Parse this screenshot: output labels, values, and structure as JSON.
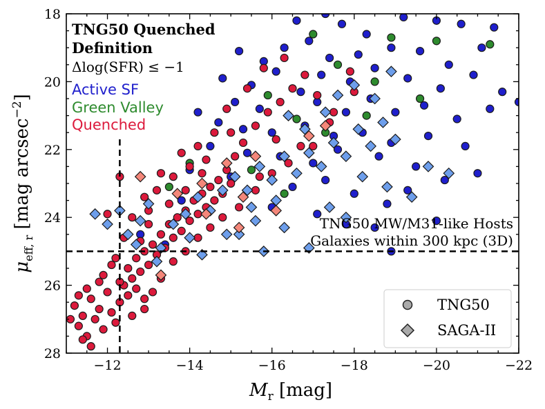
{
  "chart_data": {
    "type": "scatter",
    "xlabel_sym": "M",
    "xlabel_sub": "r",
    "xlabel_unit": " [mag]",
    "ylabel_sym": "μ",
    "ylabel_sub": "eff, r",
    "ylabel_unit": " [mag arcsec",
    "ylabel_exp": "−2",
    "ylabel_close": "]",
    "xlim": [
      -11,
      -22
    ],
    "ylim": [
      28,
      18
    ],
    "xticks": [
      -12,
      -14,
      -16,
      -18,
      -20,
      -22
    ],
    "xtick_labels": [
      "−12",
      "−14",
      "−16",
      "−18",
      "−20",
      "−22"
    ],
    "yticks": [
      18,
      20,
      22,
      24,
      26,
      28
    ],
    "ytick_labels": [
      "18",
      "20",
      "22",
      "24",
      "26",
      "28"
    ],
    "info_title_1": "TNG50 Quenched",
    "info_title_2": "Definition",
    "info_criterion": "Δlog(SFR) ≤ −1",
    "categories": [
      "Active SF",
      "Green Valley",
      "Quenched"
    ],
    "category_colors": {
      "active": "#1f1fcc",
      "green": "#2e8b2e",
      "quenched": "#dc1a3c",
      "saga_blue": "#6d9eeb",
      "saga_salmon": "#f4877a"
    },
    "annotation_line1": "TNG50 MW/M31-like Hosts",
    "annotation_line2": "Galaxies within 300 kpc (3D)",
    "reference_lines": {
      "x": -12.3,
      "y": 25.0
    },
    "legend": [
      "TNG50",
      "SAGA-II"
    ],
    "series": [
      {
        "name": "TNG50 Active SF",
        "marker": "circle",
        "color_key": "active",
        "points": [
          [
            -16.6,
            18.2
          ],
          [
            -17.3,
            18.0
          ],
          [
            -17.7,
            18.3
          ],
          [
            -18.3,
            18.6
          ],
          [
            -19.2,
            18.1
          ],
          [
            -20.0,
            18.2
          ],
          [
            -20.6,
            18.3
          ],
          [
            -21.4,
            18.4
          ],
          [
            -15.2,
            19.1
          ],
          [
            -15.8,
            19.4
          ],
          [
            -16.3,
            19.0
          ],
          [
            -16.9,
            18.8
          ],
          [
            -17.4,
            19.3
          ],
          [
            -18.1,
            19.2
          ],
          [
            -18.9,
            19.0
          ],
          [
            -19.6,
            19.1
          ],
          [
            -20.3,
            19.5
          ],
          [
            -21.1,
            19.0
          ],
          [
            -14.8,
            19.9
          ],
          [
            -15.5,
            20.1
          ],
          [
            -16.1,
            19.7
          ],
          [
            -16.7,
            20.3
          ],
          [
            -17.2,
            19.8
          ],
          [
            -17.9,
            20.0
          ],
          [
            -18.5,
            19.6
          ],
          [
            -19.3,
            19.9
          ],
          [
            -20.1,
            20.2
          ],
          [
            -20.9,
            19.8
          ],
          [
            -21.6,
            20.3
          ],
          [
            -15.1,
            20.6
          ],
          [
            -15.7,
            20.8
          ],
          [
            -16.4,
            21.0
          ],
          [
            -17.1,
            20.6
          ],
          [
            -17.8,
            20.9
          ],
          [
            -18.4,
            20.5
          ],
          [
            -19.0,
            20.9
          ],
          [
            -19.7,
            20.7
          ],
          [
            -20.5,
            21.1
          ],
          [
            -21.3,
            20.8
          ],
          [
            -14.2,
            20.9
          ],
          [
            -14.7,
            21.2
          ],
          [
            -15.3,
            21.4
          ],
          [
            -16.0,
            21.5
          ],
          [
            -16.8,
            21.3
          ],
          [
            -17.5,
            21.6
          ],
          [
            -18.2,
            21.5
          ],
          [
            -18.9,
            21.8
          ],
          [
            -19.8,
            21.6
          ],
          [
            -20.7,
            21.9
          ],
          [
            -22.0,
            20.6
          ],
          [
            -14.5,
            21.9
          ],
          [
            -15.4,
            22.1
          ],
          [
            -16.2,
            22.2
          ],
          [
            -17.0,
            22.4
          ],
          [
            -17.6,
            22.0
          ],
          [
            -18.6,
            22.2
          ],
          [
            -19.5,
            22.5
          ],
          [
            -20.2,
            22.9
          ],
          [
            -21.0,
            22.7
          ],
          [
            -14.0,
            22.6
          ],
          [
            -15.0,
            22.8
          ],
          [
            -16.5,
            23.1
          ],
          [
            -17.3,
            22.9
          ],
          [
            -18.0,
            23.3
          ],
          [
            -18.8,
            23.6
          ],
          [
            -19.3,
            23.2
          ],
          [
            -20.0,
            24.1
          ],
          [
            -16.0,
            23.7
          ],
          [
            -17.1,
            23.9
          ],
          [
            -17.8,
            24.2
          ],
          [
            -18.5,
            24.3
          ],
          [
            -18.9,
            25.0
          ],
          [
            -13.8,
            23.5
          ],
          [
            -12.8,
            24.5
          ],
          [
            -13.4,
            24.8
          ]
        ]
      },
      {
        "name": "TNG50 Green Valley",
        "marker": "circle",
        "color_key": "green",
        "points": [
          [
            -17.0,
            18.6
          ],
          [
            -18.9,
            18.7
          ],
          [
            -20.0,
            18.8
          ],
          [
            -21.3,
            18.9
          ],
          [
            -17.6,
            19.5
          ],
          [
            -18.5,
            20.0
          ],
          [
            -15.9,
            20.4
          ],
          [
            -19.6,
            20.5
          ],
          [
            -16.6,
            21.1
          ],
          [
            -17.3,
            21.5
          ],
          [
            -18.3,
            21.0
          ],
          [
            -14.0,
            22.4
          ],
          [
            -15.5,
            22.6
          ],
          [
            -16.3,
            23.3
          ],
          [
            -13.5,
            23.1
          ]
        ]
      },
      {
        "name": "TNG50 Quenched",
        "marker": "circle",
        "color_key": "quenched",
        "points": [
          [
            -11.2,
            26.6
          ],
          [
            -11.3,
            27.2
          ],
          [
            -11.4,
            26.9
          ],
          [
            -11.5,
            27.5
          ],
          [
            -11.6,
            26.4
          ],
          [
            -11.7,
            27.0
          ],
          [
            -11.8,
            26.7
          ],
          [
            -11.9,
            27.3
          ],
          [
            -11.4,
            27.6
          ],
          [
            -11.6,
            27.8
          ],
          [
            -12.0,
            26.2
          ],
          [
            -12.1,
            26.8
          ],
          [
            -12.2,
            27.1
          ],
          [
            -12.3,
            26.5
          ],
          [
            -12.4,
            26.0
          ],
          [
            -12.5,
            26.3
          ],
          [
            -12.6,
            25.8
          ],
          [
            -12.7,
            26.1
          ],
          [
            -12.8,
            25.6
          ],
          [
            -12.9,
            26.4
          ],
          [
            -11.9,
            25.7
          ],
          [
            -12.1,
            25.4
          ],
          [
            -12.3,
            25.9
          ],
          [
            -12.5,
            25.5
          ],
          [
            -12.7,
            25.2
          ],
          [
            -12.9,
            25.0
          ],
          [
            -13.0,
            25.4
          ],
          [
            -13.1,
            24.8
          ],
          [
            -13.2,
            25.1
          ],
          [
            -13.3,
            24.5
          ],
          [
            -13.4,
            24.9
          ],
          [
            -13.5,
            24.2
          ],
          [
            -13.6,
            24.6
          ],
          [
            -13.7,
            24.0
          ],
          [
            -13.8,
            24.4
          ],
          [
            -13.9,
            23.8
          ],
          [
            -14.0,
            24.1
          ],
          [
            -14.1,
            23.5
          ],
          [
            -14.2,
            23.9
          ],
          [
            -14.3,
            23.3
          ],
          [
            -14.4,
            23.7
          ],
          [
            -14.5,
            23.1
          ],
          [
            -14.6,
            23.5
          ],
          [
            -14.7,
            22.9
          ],
          [
            -14.8,
            23.3
          ],
          [
            -14.9,
            22.6
          ],
          [
            -15.0,
            23.0
          ],
          [
            -13.2,
            23.2
          ],
          [
            -13.5,
            23.6
          ],
          [
            -13.0,
            24.2
          ],
          [
            -12.8,
            24.7
          ],
          [
            -13.6,
            22.8
          ],
          [
            -14.0,
            22.5
          ],
          [
            -14.4,
            22.3
          ],
          [
            -15.1,
            22.2
          ],
          [
            -15.3,
            21.8
          ],
          [
            -15.6,
            21.3
          ],
          [
            -15.9,
            20.9
          ],
          [
            -16.2,
            20.6
          ],
          [
            -16.5,
            20.2
          ],
          [
            -16.8,
            19.8
          ],
          [
            -17.1,
            20.4
          ],
          [
            -17.5,
            20.9
          ],
          [
            -17.9,
            19.7
          ],
          [
            -15.4,
            20.2
          ],
          [
            -14.9,
            20.8
          ],
          [
            -15.8,
            19.6
          ],
          [
            -16.3,
            19.3
          ],
          [
            -14.6,
            21.5
          ],
          [
            -14.2,
            21.9
          ],
          [
            -13.8,
            22.1
          ],
          [
            -13.3,
            22.7
          ],
          [
            -12.9,
            23.4
          ],
          [
            -12.6,
            24.0
          ],
          [
            -12.3,
            22.8
          ],
          [
            -12.0,
            23.9
          ],
          [
            -13.0,
            23.8
          ],
          [
            -12.4,
            24.6
          ],
          [
            -12.2,
            25.2
          ],
          [
            -11.8,
            25.9
          ],
          [
            -11.5,
            26.1
          ],
          [
            -11.3,
            26.3
          ],
          [
            -11.1,
            27.0
          ],
          [
            -12.6,
            26.9
          ],
          [
            -12.9,
            26.7
          ],
          [
            -13.1,
            26.2
          ],
          [
            -13.3,
            25.8
          ],
          [
            -13.6,
            25.3
          ],
          [
            -13.9,
            25.0
          ],
          [
            -14.2,
            24.6
          ],
          [
            -14.5,
            24.3
          ],
          [
            -14.8,
            24.0
          ],
          [
            -15.2,
            23.7
          ],
          [
            -15.6,
            23.2
          ],
          [
            -16.0,
            22.7
          ],
          [
            -16.4,
            22.4
          ],
          [
            -17.0,
            21.9
          ],
          [
            -17.4,
            21.2
          ],
          [
            -18.0,
            20.3
          ],
          [
            -15.7,
            22.8
          ],
          [
            -16.1,
            21.7
          ],
          [
            -16.7,
            21.9
          ],
          [
            -15.0,
            21.5
          ],
          [
            -13.9,
            23.2
          ],
          [
            -14.3,
            22.7
          ]
        ]
      },
      {
        "name": "SAGA-II",
        "marker": "diamond",
        "color_key": "saga_blue",
        "points": [
          [
            -11.7,
            23.9
          ],
          [
            -12.0,
            24.2
          ],
          [
            -12.3,
            23.8
          ],
          [
            -12.5,
            24.5
          ],
          [
            -12.8,
            24.1
          ],
          [
            -13.0,
            23.6
          ],
          [
            -13.3,
            24.9
          ],
          [
            -13.6,
            24.2
          ],
          [
            -13.9,
            23.9
          ],
          [
            -14.2,
            23.4
          ],
          [
            -14.5,
            23.8
          ],
          [
            -14.8,
            23.2
          ],
          [
            -15.1,
            22.8
          ],
          [
            -15.4,
            23.2
          ],
          [
            -15.7,
            22.5
          ],
          [
            -16.0,
            22.9
          ],
          [
            -16.3,
            22.2
          ],
          [
            -16.6,
            22.7
          ],
          [
            -16.9,
            22.1
          ],
          [
            -17.2,
            22.5
          ],
          [
            -17.5,
            21.8
          ],
          [
            -17.8,
            22.2
          ],
          [
            -18.1,
            21.4
          ],
          [
            -18.4,
            21.9
          ],
          [
            -18.7,
            21.2
          ],
          [
            -19.0,
            21.7
          ],
          [
            -16.4,
            21.0
          ],
          [
            -16.8,
            21.4
          ],
          [
            -17.3,
            20.9
          ],
          [
            -17.6,
            20.4
          ],
          [
            -18.0,
            20.1
          ],
          [
            -18.5,
            20.5
          ],
          [
            -18.9,
            19.7
          ],
          [
            -15.6,
            24.1
          ],
          [
            -15.2,
            24.5
          ],
          [
            -15.8,
            25.0
          ],
          [
            -16.3,
            24.3
          ],
          [
            -16.9,
            24.9
          ],
          [
            -17.4,
            23.7
          ],
          [
            -17.8,
            24.0
          ],
          [
            -18.2,
            22.8
          ],
          [
            -18.8,
            23.1
          ],
          [
            -19.4,
            23.4
          ],
          [
            -19.8,
            22.5
          ],
          [
            -20.3,
            22.7
          ],
          [
            -14.3,
            25.1
          ],
          [
            -14.0,
            24.6
          ],
          [
            -13.2,
            25.3
          ],
          [
            -12.7,
            24.8
          ],
          [
            -14.9,
            24.5
          ],
          [
            -15.5,
            23.7
          ],
          [
            -16.1,
            23.5
          ]
        ]
      },
      {
        "name": "SAGA-II Quenched",
        "marker": "diamond",
        "color_key": "saga_salmon",
        "points": [
          [
            -12.8,
            22.8
          ],
          [
            -13.3,
            25.7
          ],
          [
            -13.7,
            23.3
          ],
          [
            -14.3,
            23.0
          ],
          [
            -14.9,
            22.4
          ],
          [
            -15.2,
            24.3
          ],
          [
            -15.6,
            22.2
          ],
          [
            -16.1,
            23.8
          ],
          [
            -16.9,
            21.6
          ],
          [
            -17.3,
            21.3
          ],
          [
            -15.3,
            23.4
          ],
          [
            -14.4,
            23.9
          ]
        ]
      }
    ]
  }
}
